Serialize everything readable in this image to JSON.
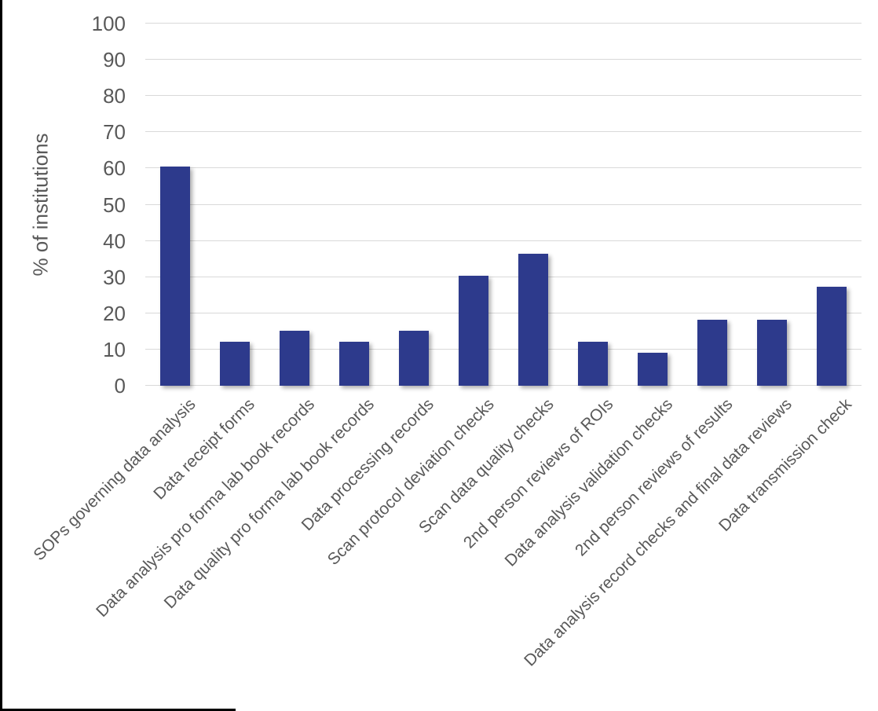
{
  "chart_data": {
    "type": "bar",
    "title": "",
    "xlabel": "",
    "ylabel": "% of institutions",
    "categories": [
      "SOPs governing data analysis",
      "Data receipt forms",
      "Data analysis pro forma lab book records",
      "Data quality pro forma lab book records",
      "Data processing records",
      "Scan protocol deviation checks",
      "Scan data quality checks",
      "2nd person reviews of ROIs",
      "Data analysis validation checks",
      "2nd person reviews of results",
      "Data analysis record checks and final data reviews",
      "Data transmission check"
    ],
    "values": [
      60.6,
      12.1,
      15.2,
      12.1,
      15.2,
      30.3,
      36.4,
      12.1,
      9.1,
      18.2,
      18.2,
      27.3
    ],
    "ylim": [
      0,
      100
    ],
    "yticks": [
      0,
      10,
      20,
      30,
      40,
      50,
      60,
      70,
      80,
      90,
      100
    ],
    "grid": true,
    "legend_position": "none",
    "bar_color": "#2D3A8C",
    "gridline_color": "#D9D9D9",
    "axis_text_color": "#595959",
    "x_label_rotation_deg": -45
  }
}
